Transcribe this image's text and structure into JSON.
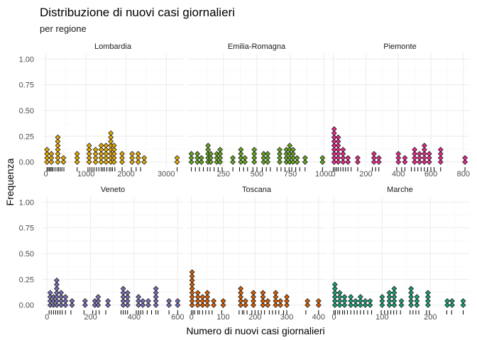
{
  "chart_data": {
    "type": "dotplot",
    "title": "Distribuzione di nuovi casi giornalieri",
    "subtitle": "per regione",
    "xlabel": "Numero di nuovi casi giornalieri",
    "ylabel": "Frequenza",
    "y_ticks": [
      0.0,
      0.25,
      0.5,
      0.75,
      1.0
    ],
    "y_tick_labels": [
      "0.00",
      "0.25",
      "0.50",
      "0.75",
      "1.00"
    ],
    "ylim": [
      -0.05,
      1.05
    ],
    "grid": true,
    "dot_step": 0.04,
    "colors": {
      "Lombardia": "#E6AB02",
      "Emilia-Romagna": "#66A61E",
      "Piemonte": "#E7298A",
      "Veneto": "#7570B3",
      "Toscana": "#D95F02",
      "Marche": "#1B9E77"
    },
    "panels": [
      {
        "name": "Lombardia",
        "xlim": [
          -80,
          3420
        ],
        "x_ticks": [
          0,
          1000,
          2000,
          3000
        ],
        "x_tick_labels": [
          "0",
          "1000",
          "2000",
          "3000"
        ],
        "bins": [
          {
            "x": 30,
            "y": 0.12
          },
          {
            "x": 140,
            "y": 0.08
          },
          {
            "x": 300,
            "y": 0.24
          },
          {
            "x": 440,
            "y": 0.04
          },
          {
            "x": 780,
            "y": 0.08
          },
          {
            "x": 1080,
            "y": 0.16
          },
          {
            "x": 1240,
            "y": 0.12
          },
          {
            "x": 1380,
            "y": 0.16
          },
          {
            "x": 1500,
            "y": 0.16
          },
          {
            "x": 1620,
            "y": 0.28
          },
          {
            "x": 1700,
            "y": 0.16
          },
          {
            "x": 1900,
            "y": 0.08
          },
          {
            "x": 2150,
            "y": 0.08
          },
          {
            "x": 2300,
            "y": 0.08
          },
          {
            "x": 2450,
            "y": 0.04
          },
          {
            "x": 3270,
            "y": 0.04
          }
        ],
        "rug": [
          30,
          60,
          90,
          120,
          150,
          180,
          230,
          280,
          320,
          360,
          400,
          450,
          780,
          1050,
          1100,
          1150,
          1200,
          1260,
          1320,
          1380,
          1420,
          1460,
          1520,
          1580,
          1620,
          1660,
          1720,
          1900,
          2130,
          2250,
          2360,
          3270
        ]
      },
      {
        "name": "Emilia-Romagna",
        "xlim": [
          -25,
          1020
        ],
        "x_ticks": [
          250,
          500,
          750,
          1000
        ],
        "x_tick_labels": [
          "250",
          "500",
          "750",
          "1000"
        ],
        "bins": [
          {
            "x": 10,
            "y": 0.08
          },
          {
            "x": 55,
            "y": 0.08
          },
          {
            "x": 85,
            "y": 0.04
          },
          {
            "x": 135,
            "y": 0.16
          },
          {
            "x": 155,
            "y": 0.08
          },
          {
            "x": 200,
            "y": 0.08
          },
          {
            "x": 225,
            "y": 0.12
          },
          {
            "x": 320,
            "y": 0.04
          },
          {
            "x": 380,
            "y": 0.12
          },
          {
            "x": 410,
            "y": 0.04
          },
          {
            "x": 480,
            "y": 0.12
          },
          {
            "x": 550,
            "y": 0.08
          },
          {
            "x": 580,
            "y": 0.08
          },
          {
            "x": 670,
            "y": 0.12
          },
          {
            "x": 720,
            "y": 0.12
          },
          {
            "x": 745,
            "y": 0.16
          },
          {
            "x": 770,
            "y": 0.12
          },
          {
            "x": 800,
            "y": 0.04
          },
          {
            "x": 860,
            "y": 0.04
          },
          {
            "x": 990,
            "y": 0.04
          }
        ],
        "rug": [
          10,
          40,
          70,
          100,
          130,
          150,
          180,
          210,
          240,
          320,
          370,
          400,
          430,
          470,
          500,
          540,
          570,
          600,
          650,
          680,
          710,
          740,
          760,
          790,
          820,
          860,
          990
        ]
      },
      {
        "name": "Piemonte",
        "xlim": [
          -20,
          840
        ],
        "x_ticks": [
          0,
          200,
          400,
          600,
          800
        ],
        "x_tick_labels": [
          "0",
          "200",
          "400",
          "600",
          "800"
        ],
        "bins": [
          {
            "x": 5,
            "y": 0.32
          },
          {
            "x": 30,
            "y": 0.24
          },
          {
            "x": 60,
            "y": 0.12
          },
          {
            "x": 90,
            "y": 0.04
          },
          {
            "x": 150,
            "y": 0.04
          },
          {
            "x": 250,
            "y": 0.08
          },
          {
            "x": 280,
            "y": 0.04
          },
          {
            "x": 400,
            "y": 0.08
          },
          {
            "x": 440,
            "y": 0.04
          },
          {
            "x": 500,
            "y": 0.12
          },
          {
            "x": 530,
            "y": 0.08
          },
          {
            "x": 560,
            "y": 0.16
          },
          {
            "x": 590,
            "y": 0.08
          },
          {
            "x": 660,
            "y": 0.12
          },
          {
            "x": 810,
            "y": 0.04
          }
        ],
        "rug": [
          0,
          10,
          20,
          30,
          45,
          60,
          75,
          90,
          110,
          150,
          240,
          260,
          280,
          390,
          420,
          440,
          480,
          500,
          520,
          540,
          560,
          580,
          600,
          620,
          660,
          810
        ]
      },
      {
        "name": "Veneto",
        "xlim": [
          -20,
          625
        ],
        "x_ticks": [
          0,
          200,
          400,
          600
        ],
        "x_tick_labels": [
          "0",
          "200",
          "400",
          "600"
        ],
        "bins": [
          {
            "x": 15,
            "y": 0.12
          },
          {
            "x": 30,
            "y": 0.08
          },
          {
            "x": 45,
            "y": 0.24
          },
          {
            "x": 65,
            "y": 0.12
          },
          {
            "x": 85,
            "y": 0.08
          },
          {
            "x": 115,
            "y": 0.04
          },
          {
            "x": 175,
            "y": 0.04
          },
          {
            "x": 220,
            "y": 0.04
          },
          {
            "x": 235,
            "y": 0.08
          },
          {
            "x": 280,
            "y": 0.04
          },
          {
            "x": 350,
            "y": 0.16
          },
          {
            "x": 370,
            "y": 0.12
          },
          {
            "x": 420,
            "y": 0.08
          },
          {
            "x": 440,
            "y": 0.04
          },
          {
            "x": 465,
            "y": 0.04
          },
          {
            "x": 500,
            "y": 0.16
          },
          {
            "x": 560,
            "y": 0.04
          },
          {
            "x": 600,
            "y": 0.04
          }
        ],
        "rug": [
          10,
          20,
          30,
          40,
          50,
          60,
          70,
          85,
          110,
          170,
          210,
          225,
          240,
          270,
          340,
          350,
          360,
          370,
          410,
          420,
          430,
          440,
          460,
          480,
          500,
          510,
          560,
          600
        ]
      },
      {
        "name": "Toscana",
        "xlim": [
          -15,
          425
        ],
        "x_ticks": [
          0,
          100,
          200,
          300,
          400
        ],
        "x_tick_labels": [
          "0",
          "100",
          "200",
          "300",
          "400"
        ],
        "bins": [
          {
            "x": 2,
            "y": 0.32
          },
          {
            "x": 20,
            "y": 0.12
          },
          {
            "x": 35,
            "y": 0.08
          },
          {
            "x": 50,
            "y": 0.12
          },
          {
            "x": 70,
            "y": 0.04
          },
          {
            "x": 100,
            "y": 0.04
          },
          {
            "x": 155,
            "y": 0.16
          },
          {
            "x": 170,
            "y": 0.04
          },
          {
            "x": 195,
            "y": 0.12
          },
          {
            "x": 225,
            "y": 0.12
          },
          {
            "x": 240,
            "y": 0.04
          },
          {
            "x": 265,
            "y": 0.12
          },
          {
            "x": 280,
            "y": 0.04
          },
          {
            "x": 300,
            "y": 0.08
          },
          {
            "x": 365,
            "y": 0.04
          },
          {
            "x": 400,
            "y": 0.04
          }
        ],
        "rug": [
          0,
          5,
          10,
          20,
          25,
          35,
          45,
          55,
          65,
          95,
          150,
          160,
          165,
          175,
          190,
          200,
          210,
          220,
          230,
          245,
          255,
          265,
          275,
          290,
          300,
          360,
          400
        ]
      },
      {
        "name": "Marche",
        "xlim": [
          -8,
          282
        ],
        "x_ticks": [
          0,
          100,
          200
        ],
        "x_tick_labels": [
          "0",
          "100",
          "200"
        ],
        "bins": [
          {
            "x": 2,
            "y": 0.2
          },
          {
            "x": 12,
            "y": 0.12
          },
          {
            "x": 22,
            "y": 0.08
          },
          {
            "x": 35,
            "y": 0.08
          },
          {
            "x": 45,
            "y": 0.04
          },
          {
            "x": 55,
            "y": 0.08
          },
          {
            "x": 65,
            "y": 0.04
          },
          {
            "x": 75,
            "y": 0.04
          },
          {
            "x": 100,
            "y": 0.08
          },
          {
            "x": 115,
            "y": 0.12
          },
          {
            "x": 125,
            "y": 0.16
          },
          {
            "x": 140,
            "y": 0.04
          },
          {
            "x": 160,
            "y": 0.16
          },
          {
            "x": 172,
            "y": 0.08
          },
          {
            "x": 195,
            "y": 0.12
          },
          {
            "x": 235,
            "y": 0.04
          },
          {
            "x": 245,
            "y": 0.04
          },
          {
            "x": 268,
            "y": 0.04
          }
        ],
        "rug": [
          0,
          3,
          8,
          12,
          18,
          22,
          28,
          35,
          42,
          48,
          55,
          62,
          70,
          78,
          98,
          105,
          112,
          118,
          124,
          130,
          138,
          158,
          164,
          170,
          176,
          192,
          198,
          234,
          244,
          268
        ]
      }
    ]
  }
}
